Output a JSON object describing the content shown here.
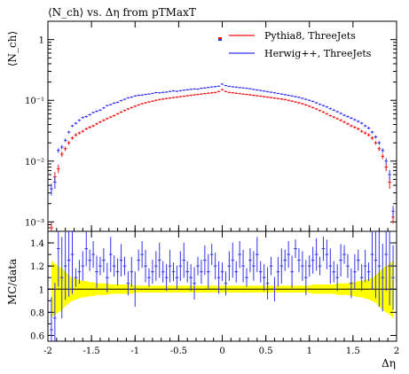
{
  "chart_data": [
    {
      "type": "scatter",
      "title": "⟨N_ch⟩ vs. Δη from pTMaxT",
      "ylabel": "⟨N_ch⟩",
      "xlabel": "Δη",
      "yscale": "log",
      "ylim": [
        0.0007,
        2
      ],
      "xlim": [
        -2,
        2
      ],
      "y_ticks": [
        "10⁻³",
        "10⁻²",
        "10⁻¹",
        "1"
      ],
      "legend_position": "top-right",
      "x": [
        -1.96,
        -1.92,
        -1.88,
        -1.84,
        -1.8,
        -1.76,
        -1.72,
        -1.68,
        -1.64,
        -1.6,
        -1.56,
        -1.52,
        -1.48,
        -1.44,
        -1.4,
        -1.36,
        -1.32,
        -1.28,
        -1.24,
        -1.2,
        -1.16,
        -1.12,
        -1.08,
        -1.04,
        -1.0,
        -0.96,
        -0.92,
        -0.88,
        -0.84,
        -0.8,
        -0.76,
        -0.72,
        -0.68,
        -0.64,
        -0.6,
        -0.56,
        -0.52,
        -0.48,
        -0.44,
        -0.4,
        -0.36,
        -0.32,
        -0.28,
        -0.24,
        -0.2,
        -0.16,
        -0.12,
        -0.08,
        -0.04,
        0.0,
        0.04,
        0.08,
        0.12,
        0.16,
        0.2,
        0.24,
        0.28,
        0.32,
        0.36,
        0.4,
        0.44,
        0.48,
        0.52,
        0.56,
        0.6,
        0.64,
        0.68,
        0.72,
        0.76,
        0.8,
        0.84,
        0.88,
        0.92,
        0.96,
        1.0,
        1.04,
        1.08,
        1.12,
        1.16,
        1.2,
        1.24,
        1.28,
        1.32,
        1.36,
        1.4,
        1.44,
        1.48,
        1.52,
        1.56,
        1.6,
        1.64,
        1.68,
        1.72,
        1.76,
        1.8,
        1.84,
        1.88,
        1.92,
        1.96
      ],
      "series": [
        {
          "name": "Pythia8, ThreeJets",
          "color": "#ee1111",
          "values": [
            0.0008,
            0.0055,
            0.0075,
            0.013,
            0.016,
            0.02,
            0.024,
            0.027,
            0.029,
            0.031,
            0.034,
            0.036,
            0.038,
            0.041,
            0.044,
            0.047,
            0.05,
            0.053,
            0.056,
            0.06,
            0.064,
            0.068,
            0.072,
            0.076,
            0.08,
            0.084,
            0.088,
            0.091,
            0.094,
            0.097,
            0.1,
            0.103,
            0.105,
            0.107,
            0.109,
            0.111,
            0.113,
            0.115,
            0.117,
            0.119,
            0.121,
            0.123,
            0.125,
            0.127,
            0.129,
            0.131,
            0.133,
            0.135,
            0.14,
            0.15,
            0.14,
            0.135,
            0.133,
            0.131,
            0.129,
            0.127,
            0.125,
            0.123,
            0.121,
            0.119,
            0.117,
            0.115,
            0.113,
            0.111,
            0.109,
            0.107,
            0.105,
            0.103,
            0.1,
            0.097,
            0.094,
            0.091,
            0.088,
            0.084,
            0.08,
            0.076,
            0.072,
            0.068,
            0.064,
            0.06,
            0.056,
            0.053,
            0.05,
            0.047,
            0.044,
            0.041,
            0.038,
            0.036,
            0.034,
            0.031,
            0.029,
            0.027,
            0.024,
            0.02,
            0.016,
            0.012,
            0.008,
            0.0045,
            0.0012
          ]
        },
        {
          "name": "Herwig++, ThreeJets",
          "color": "#3333ee",
          "values": [
            0.0035,
            0.0045,
            0.015,
            0.017,
            0.022,
            0.03,
            0.038,
            0.042,
            0.047,
            0.052,
            0.054,
            0.058,
            0.063,
            0.066,
            0.069,
            0.075,
            0.082,
            0.085,
            0.09,
            0.093,
            0.099,
            0.104,
            0.11,
            0.113,
            0.118,
            0.121,
            0.122,
            0.125,
            0.127,
            0.13,
            0.134,
            0.133,
            0.135,
            0.137,
            0.14,
            0.143,
            0.141,
            0.144,
            0.147,
            0.149,
            0.152,
            0.154,
            0.153,
            0.158,
            0.16,
            0.163,
            0.166,
            0.168,
            0.171,
            0.185,
            0.175,
            0.17,
            0.167,
            0.165,
            0.162,
            0.16,
            0.158,
            0.155,
            0.151,
            0.148,
            0.145,
            0.142,
            0.139,
            0.136,
            0.133,
            0.13,
            0.127,
            0.124,
            0.121,
            0.118,
            0.115,
            0.112,
            0.108,
            0.104,
            0.1,
            0.096,
            0.091,
            0.086,
            0.082,
            0.078,
            0.073,
            0.069,
            0.065,
            0.061,
            0.057,
            0.054,
            0.051,
            0.048,
            0.045,
            0.042,
            0.038,
            0.035,
            0.03,
            0.025,
            0.02,
            0.015,
            0.01,
            0.006,
            0.0015
          ]
        }
      ]
    },
    {
      "type": "scatter",
      "ylabel": "MC/data",
      "xlabel": "Δη",
      "ylim": [
        0.55,
        1.5
      ],
      "xlim": [
        -2,
        2
      ],
      "y_ticks": [
        "0.6",
        "0.8",
        "1",
        "1.2",
        "1.4"
      ],
      "x_ticks": [
        "-2",
        "-1.5",
        "-1",
        "-0.5",
        "0",
        "0.5",
        "1",
        "1.5",
        "2"
      ],
      "reference_line": 1,
      "band_color": "#ffff00",
      "band_halfwidth": [
        0.25,
        0.22,
        0.2,
        0.18,
        0.15,
        0.12,
        0.1,
        0.09,
        0.08,
        0.07,
        0.07,
        0.06,
        0.06,
        0.05,
        0.05,
        0.05,
        0.05,
        0.04,
        0.04,
        0.04,
        0.04,
        0.04,
        0.04,
        0.04,
        0.03,
        0.03,
        0.03,
        0.03,
        0.03,
        0.03,
        0.03,
        0.03,
        0.03,
        0.03,
        0.03,
        0.03,
        0.03,
        0.03,
        0.03,
        0.03,
        0.03,
        0.03,
        0.03,
        0.03,
        0.03,
        0.03,
        0.03,
        0.03,
        0.03,
        0.03,
        0.03,
        0.03,
        0.03,
        0.03,
        0.03,
        0.03,
        0.03,
        0.03,
        0.03,
        0.03,
        0.03,
        0.03,
        0.03,
        0.03,
        0.03,
        0.03,
        0.03,
        0.03,
        0.03,
        0.03,
        0.03,
        0.03,
        0.03,
        0.03,
        0.03,
        0.04,
        0.04,
        0.04,
        0.04,
        0.04,
        0.04,
        0.04,
        0.05,
        0.05,
        0.05,
        0.05,
        0.06,
        0.06,
        0.07,
        0.07,
        0.08,
        0.09,
        0.1,
        0.12,
        0.15,
        0.18,
        0.2,
        0.22,
        0.25
      ],
      "series": [
        {
          "name": "Herwig++, ThreeJets",
          "color": "#3333ee",
          "values": [
            0.65,
            0.75,
            1.35,
            1.1,
            1.2,
            1.25,
            1.3,
            1.1,
            1.15,
            1.2,
            1.35,
            1.25,
            1.3,
            1.15,
            1.2,
            1.25,
            1.1,
            1.3,
            1.2,
            1.15,
            1.25,
            1.2,
            1.05,
            1.15,
            1.0,
            1.25,
            1.3,
            1.2,
            1.1,
            1.15,
            1.2,
            1.25,
            1.15,
            1.1,
            1.2,
            1.15,
            1.1,
            1.2,
            1.25,
            1.15,
            1.1,
            1.05,
            1.2,
            1.15,
            1.25,
            1.15,
            1.3,
            1.2,
            1.1,
            1.15,
            1.05,
            1.2,
            1.25,
            1.15,
            1.3,
            1.2,
            1.1,
            1.25,
            1.2,
            1.3,
            1.15,
            1.1,
            1.05,
            1.2,
            1.0,
            1.15,
            1.2,
            1.25,
            1.3,
            1.15,
            1.35,
            1.25,
            1.2,
            1.1,
            1.2,
            1.25,
            1.3,
            1.2,
            1.35,
            1.3,
            1.2,
            1.15,
            1.1,
            1.25,
            1.3,
            1.2,
            1.05,
            1.15,
            1.25,
            1.1,
            1.2,
            1.15,
            1.3,
            1.25,
            1.2,
            1.1,
            1.3,
            1.2,
            1.1
          ]
        }
      ]
    }
  ]
}
